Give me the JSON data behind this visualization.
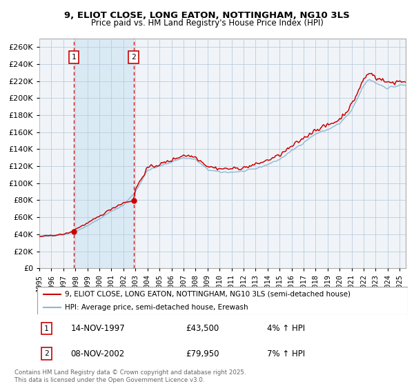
{
  "title_line1": "9, ELIOT CLOSE, LONG EATON, NOTTINGHAM, NG10 3LS",
  "title_line2": "Price paid vs. HM Land Registry's House Price Index (HPI)",
  "background_color": "#ffffff",
  "grid_color": "#cccccc",
  "purchase1": {
    "date_num": 1997.87,
    "price": 43500,
    "label": "1",
    "date_str": "14-NOV-1997",
    "pct": "4% ↑ HPI"
  },
  "purchase2": {
    "date_num": 2002.85,
    "price": 79950,
    "label": "2",
    "date_str": "08-NOV-2002",
    "pct": "7% ↑ HPI"
  },
  "hpi_line_color": "#89b8d4",
  "price_line_color": "#cc0000",
  "dashed_line_color": "#cc0000",
  "highlight_color": "#daeaf5",
  "legend_label_price": "9, ELIOT CLOSE, LONG EATON, NOTTINGHAM, NG10 3LS (semi-detached house)",
  "legend_label_hpi": "HPI: Average price, semi-detached house, Erewash",
  "footnote": "Contains HM Land Registry data © Crown copyright and database right 2025.\nThis data is licensed under the Open Government Licence v3.0.",
  "xmin": 1995.0,
  "xmax": 2025.5,
  "ymin": 0,
  "ymax": 270000,
  "yticks": [
    0,
    20000,
    40000,
    60000,
    80000,
    100000,
    120000,
    140000,
    160000,
    180000,
    200000,
    220000,
    240000,
    260000
  ],
  "xticks": [
    1995,
    1996,
    1997,
    1998,
    1999,
    2000,
    2001,
    2002,
    2003,
    2004,
    2005,
    2006,
    2007,
    2008,
    2009,
    2010,
    2011,
    2012,
    2013,
    2014,
    2015,
    2016,
    2017,
    2018,
    2019,
    2020,
    2021,
    2022,
    2023,
    2024,
    2025
  ]
}
